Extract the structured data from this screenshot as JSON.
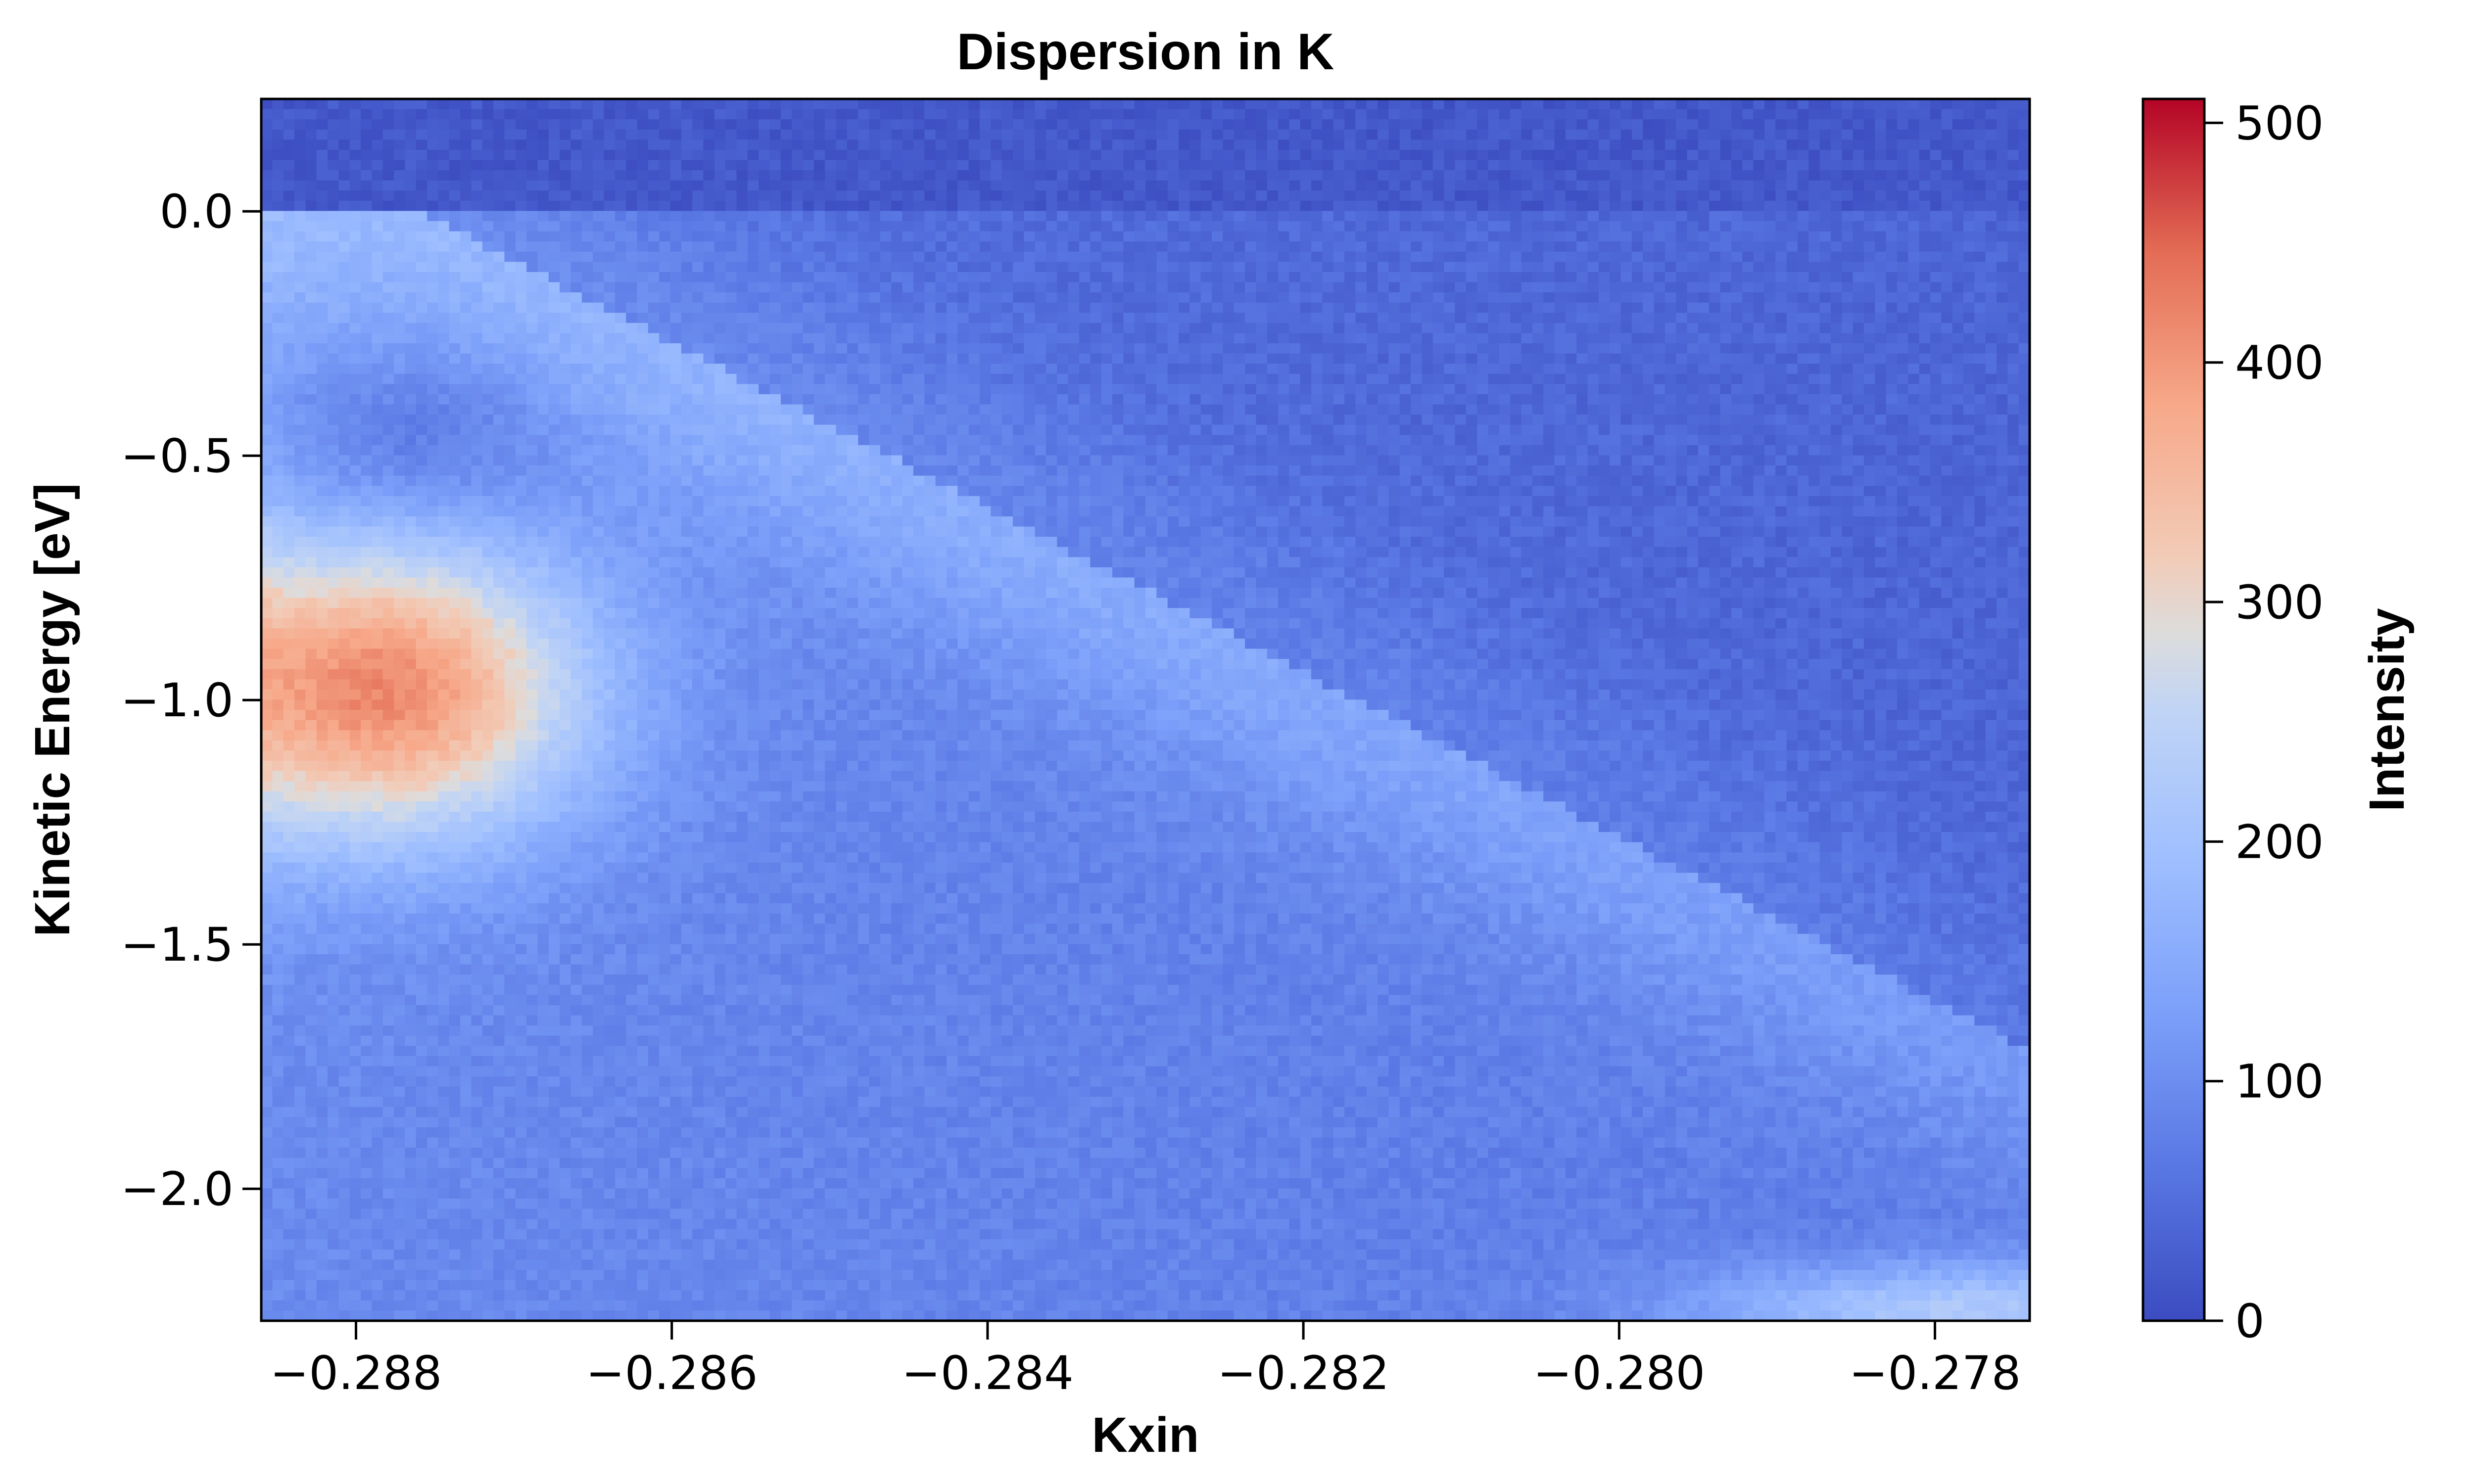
{
  "chart_data": {
    "type": "heatmap",
    "title": "Dispersion in K",
    "xlabel": "Kxin",
    "ylabel": "Kinetic Energy [eV]",
    "xlim": [
      -0.2886,
      -0.2774
    ],
    "ylim": [
      -2.27,
      0.23
    ],
    "x_ticks": [
      -0.288,
      -0.286,
      -0.284,
      -0.282,
      -0.28,
      -0.278
    ],
    "x_tick_labels": [
      "−0.288",
      "−0.286",
      "−0.284",
      "−0.282",
      "−0.280",
      "−0.278"
    ],
    "y_ticks": [
      0.0,
      -0.5,
      -1.0,
      -1.5,
      -2.0
    ],
    "y_tick_labels": [
      "0.0",
      "−0.5",
      "−1.0",
      "−1.5",
      "−2.0"
    ],
    "colormap": "coolwarm",
    "grid": false,
    "colorbar": {
      "label": "Intensity",
      "range": [
        0,
        510
      ],
      "ticks": [
        0,
        100,
        200,
        300,
        400,
        500
      ],
      "tick_labels": [
        "0",
        "100",
        "200",
        "300",
        "400",
        "500"
      ]
    },
    "features": [
      {
        "description": "Fermi edge",
        "energy": 0.0
      },
      {
        "description": "dispersing band from top-left toward bottom-right",
        "kx_start": -0.2876,
        "E_start": 0.0,
        "kx_end": -0.2775,
        "E_end": -1.7
      },
      {
        "description": "intensity maximum",
        "kx": -0.2878,
        "E": -0.98,
        "intensity": 420
      }
    ]
  }
}
